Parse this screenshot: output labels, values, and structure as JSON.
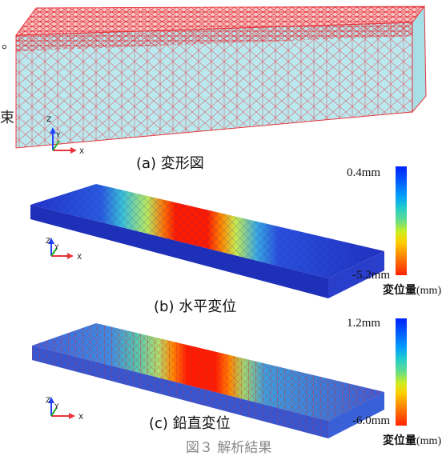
{
  "edge_text": {
    "left_mark": "。",
    "left_char": "束"
  },
  "panels": {
    "a": {
      "caption": "(a) 変形図"
    },
    "b": {
      "caption": "(b) 水平変位",
      "max": "0.4mm",
      "min": "-5.2mm",
      "unit_bold": "変位量",
      "unit": "(mm)"
    },
    "c": {
      "caption": "(c) 鉛直変位",
      "max": "1.2mm",
      "min": "-6.0mm",
      "unit_bold": "変位量",
      "unit": "(mm)"
    }
  },
  "axes": {
    "z": "Z",
    "y": "Y",
    "x": "X"
  },
  "colors": {
    "mesh": "#e8343c",
    "face": "#b9e9ef",
    "beam_blue": "#2244cc",
    "hot": "#ff1a00"
  },
  "figure_caption": "図３ 解析結果"
}
